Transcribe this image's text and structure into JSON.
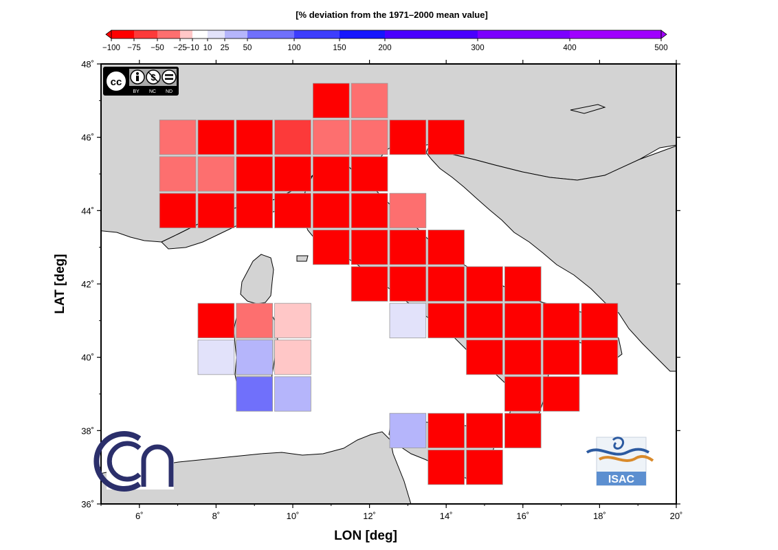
{
  "colorbar": {
    "title": "[% deviation from the 1971–2000 mean value]",
    "boundaries": [
      -100,
      -75,
      -50,
      -25,
      -10,
      10,
      25,
      50,
      100,
      150,
      200,
      300,
      400,
      500
    ],
    "tick_labels": [
      "−100",
      "−75",
      "−50",
      "−25",
      "−10",
      "10",
      "25",
      "50",
      "100",
      "150",
      "200",
      "300",
      "400",
      "500"
    ],
    "colors": [
      "#fe0000",
      "#fc3a3a",
      "#fd6f6f",
      "#ffc7c7",
      "#ffffff",
      "#e2e2fa",
      "#b5b5fb",
      "#7070fb",
      "#3d3dfc",
      "#1616fd",
      "#4a00ff",
      "#7c00ff",
      "#a000ff"
    ],
    "under_color": "#fe0000",
    "over_color": "#a000ff"
  },
  "chart_data": {
    "type": "heatmap",
    "title": "",
    "xlabel": "LON [deg]",
    "ylabel": "LAT [deg]",
    "xlim": [
      5,
      20
    ],
    "ylim": [
      36,
      48
    ],
    "x_ticks": [
      6,
      8,
      10,
      12,
      14,
      16,
      18,
      20
    ],
    "y_ticks": [
      36,
      38,
      40,
      42,
      44,
      46,
      48
    ],
    "x_tick_labels": [
      "6˚",
      "8˚",
      "10˚",
      "12˚",
      "14˚",
      "16˚",
      "18˚",
      "20˚"
    ],
    "y_tick_labels": [
      "36˚",
      "38˚",
      "40˚",
      "42˚",
      "44˚",
      "46˚",
      "48˚"
    ],
    "cell_size_deg": 1,
    "cells": [
      {
        "lon": 11,
        "lat": 47,
        "value": -80
      },
      {
        "lon": 12,
        "lat": 47,
        "value": -40
      },
      {
        "lon": 7,
        "lat": 46,
        "value": -40
      },
      {
        "lon": 8,
        "lat": 46,
        "value": -80
      },
      {
        "lon": 9,
        "lat": 46,
        "value": -80
      },
      {
        "lon": 10,
        "lat": 46,
        "value": -60
      },
      {
        "lon": 11,
        "lat": 46,
        "value": -40
      },
      {
        "lon": 12,
        "lat": 46,
        "value": -40
      },
      {
        "lon": 13,
        "lat": 46,
        "value": -80
      },
      {
        "lon": 14,
        "lat": 46,
        "value": -95
      },
      {
        "lon": 7,
        "lat": 45,
        "value": -40
      },
      {
        "lon": 8,
        "lat": 45,
        "value": -40
      },
      {
        "lon": 9,
        "lat": 45,
        "value": -80
      },
      {
        "lon": 10,
        "lat": 45,
        "value": -80
      },
      {
        "lon": 11,
        "lat": 45,
        "value": -95
      },
      {
        "lon": 12,
        "lat": 45,
        "value": -80
      },
      {
        "lon": 7,
        "lat": 44,
        "value": -80
      },
      {
        "lon": 8,
        "lat": 44,
        "value": -95
      },
      {
        "lon": 9,
        "lat": 44,
        "value": -95
      },
      {
        "lon": 10,
        "lat": 44,
        "value": -80
      },
      {
        "lon": 11,
        "lat": 44,
        "value": -80
      },
      {
        "lon": 12,
        "lat": 44,
        "value": -80
      },
      {
        "lon": 13,
        "lat": 44,
        "value": -40
      },
      {
        "lon": 11,
        "lat": 43,
        "value": -95
      },
      {
        "lon": 12,
        "lat": 43,
        "value": -95
      },
      {
        "lon": 13,
        "lat": 43,
        "value": -95
      },
      {
        "lon": 14,
        "lat": 43,
        "value": -95
      },
      {
        "lon": 12,
        "lat": 42,
        "value": -80
      },
      {
        "lon": 13,
        "lat": 42,
        "value": -95
      },
      {
        "lon": 14,
        "lat": 42,
        "value": -95
      },
      {
        "lon": 15,
        "lat": 42,
        "value": -95
      },
      {
        "lon": 16,
        "lat": 42,
        "value": -95
      },
      {
        "lon": 8,
        "lat": 41,
        "value": -80
      },
      {
        "lon": 9,
        "lat": 41,
        "value": -40
      },
      {
        "lon": 10,
        "lat": 41,
        "value": -20
      },
      {
        "lon": 13,
        "lat": 41,
        "value": 15
      },
      {
        "lon": 14,
        "lat": 41,
        "value": -95
      },
      {
        "lon": 15,
        "lat": 41,
        "value": -95
      },
      {
        "lon": 16,
        "lat": 41,
        "value": -95
      },
      {
        "lon": 17,
        "lat": 41,
        "value": -95
      },
      {
        "lon": 18,
        "lat": 41,
        "value": -95
      },
      {
        "lon": 8,
        "lat": 40,
        "value": 15
      },
      {
        "lon": 9,
        "lat": 40,
        "value": 35
      },
      {
        "lon": 10,
        "lat": 40,
        "value": -20
      },
      {
        "lon": 15,
        "lat": 40,
        "value": -95
      },
      {
        "lon": 16,
        "lat": 40,
        "value": -95
      },
      {
        "lon": 17,
        "lat": 40,
        "value": -95
      },
      {
        "lon": 18,
        "lat": 40,
        "value": -95
      },
      {
        "lon": 9,
        "lat": 39,
        "value": 75
      },
      {
        "lon": 10,
        "lat": 39,
        "value": 35
      },
      {
        "lon": 16,
        "lat": 39,
        "value": -95
      },
      {
        "lon": 17,
        "lat": 39,
        "value": -95
      },
      {
        "lon": 13,
        "lat": 38,
        "value": 35
      },
      {
        "lon": 14,
        "lat": 38,
        "value": -80
      },
      {
        "lon": 15,
        "lat": 38,
        "value": -95
      },
      {
        "lon": 16,
        "lat": 38,
        "value": -95
      },
      {
        "lon": 14,
        "lat": 37,
        "value": -95
      },
      {
        "lon": 15,
        "lat": 37,
        "value": -95
      }
    ]
  },
  "logos": {
    "cc_license": "cc-by-nc-nd",
    "cc_labels": [
      "BY",
      "NC",
      "ND"
    ],
    "cnr_logo": "cnr-logo",
    "isac_logo": "ISAC"
  }
}
